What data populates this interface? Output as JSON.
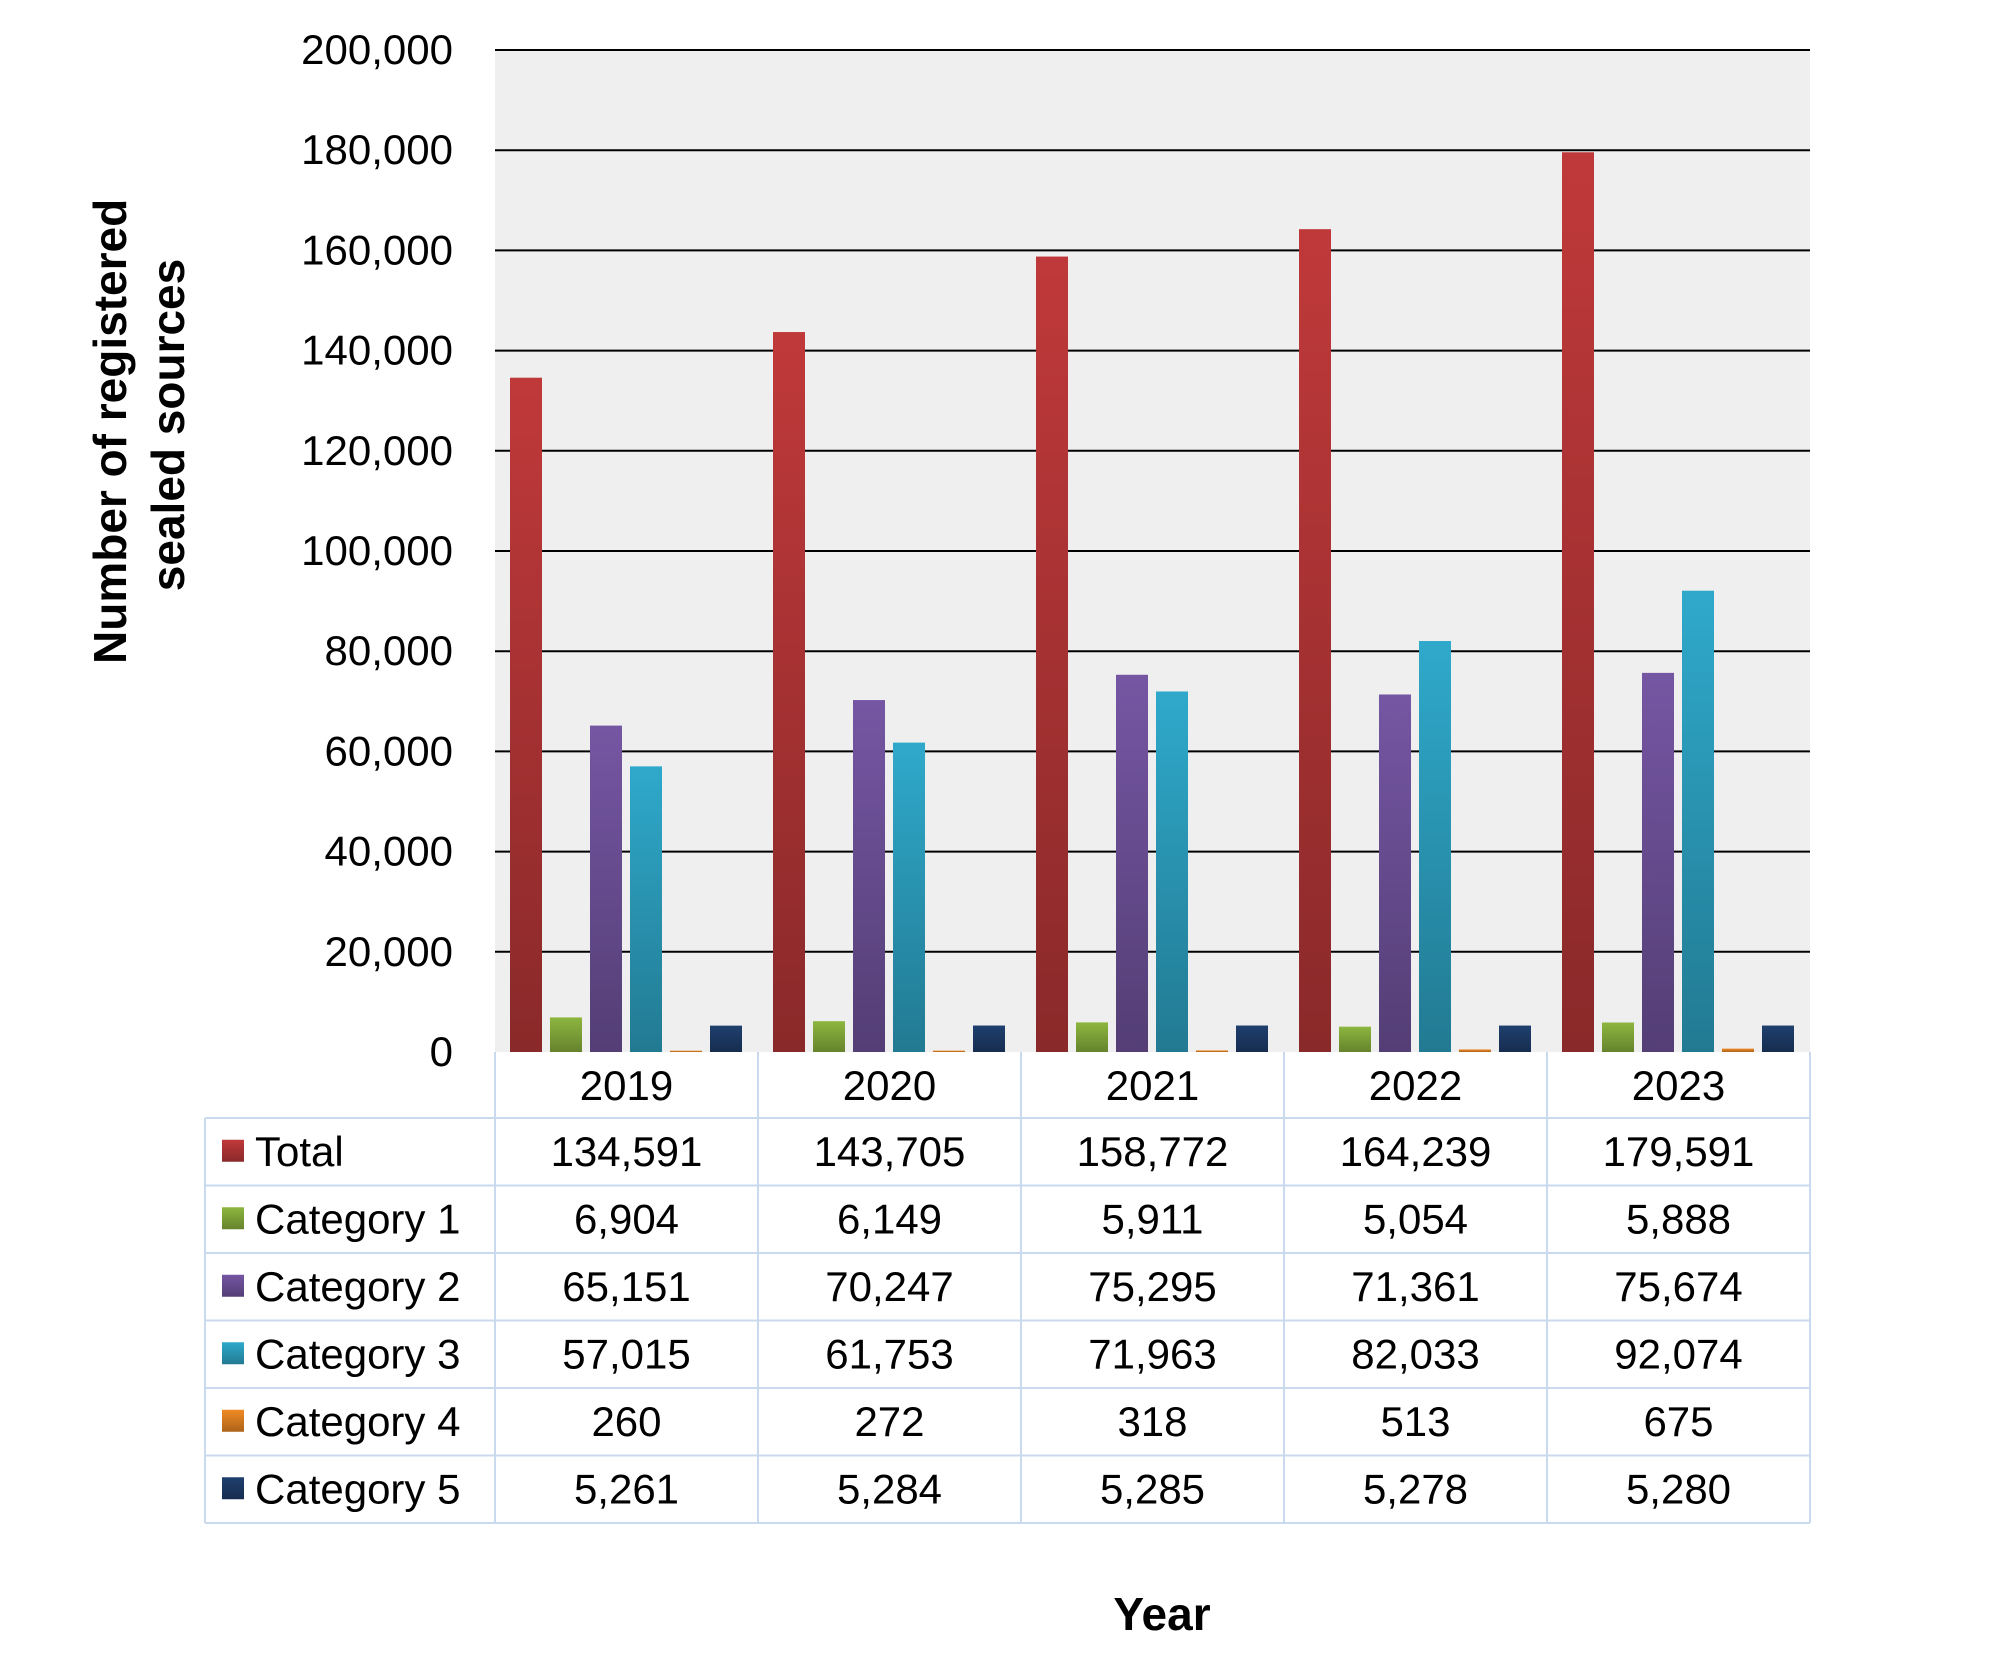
{
  "chart_data": {
    "type": "bar",
    "xlabel": "Year",
    "ylabel_lines": [
      "Number of registered",
      "sealed sources"
    ],
    "ylim": [
      0,
      200000
    ],
    "ytick_labels": [
      "0",
      "20,000",
      "40,000",
      "60,000",
      "80,000",
      "100,000",
      "120,000",
      "140,000",
      "160,000",
      "180,000",
      "200,000"
    ],
    "grid": true,
    "legend_placement": "data table below plot",
    "categories": [
      "2019",
      "2020",
      "2021",
      "2022",
      "2023"
    ],
    "series": [
      {
        "name": "Total",
        "color": "#c0393a",
        "values": [
          134591,
          143705,
          158772,
          164239,
          179591
        ],
        "labels": [
          "134,591",
          "143,705",
          "158,772",
          "164,239",
          "179,591"
        ]
      },
      {
        "name": "Category 1",
        "color": "#8db63f",
        "values": [
          6904,
          6149,
          5911,
          5054,
          5888
        ],
        "labels": [
          "6,904",
          "6,149",
          "5,911",
          "5,054",
          "5,888"
        ]
      },
      {
        "name": "Category 2",
        "color": "#7556a3",
        "values": [
          65151,
          70247,
          75295,
          71361,
          75674
        ],
        "labels": [
          "65,151",
          "70,247",
          "75,295",
          "71,361",
          "75,674"
        ]
      },
      {
        "name": "Category 3",
        "color": "#2fa9cb",
        "values": [
          57015,
          61753,
          71963,
          82033,
          92074
        ],
        "labels": [
          "57,015",
          "61,753",
          "71,963",
          "82,033",
          "92,074"
        ]
      },
      {
        "name": "Category 4",
        "color": "#f08a24",
        "values": [
          260,
          272,
          318,
          513,
          675
        ],
        "labels": [
          "260",
          "272",
          "318",
          "513",
          "675"
        ]
      },
      {
        "name": "Category 5",
        "color": "#1f3f6e",
        "values": [
          5261,
          5284,
          5285,
          5278,
          5280
        ],
        "labels": [
          "5,261",
          "5,284",
          "5,285",
          "5,278",
          "5,280"
        ]
      }
    ]
  },
  "colors": {
    "plot_background": "#efefef",
    "gridline": "#000000",
    "table_border": "#c9daef"
  }
}
